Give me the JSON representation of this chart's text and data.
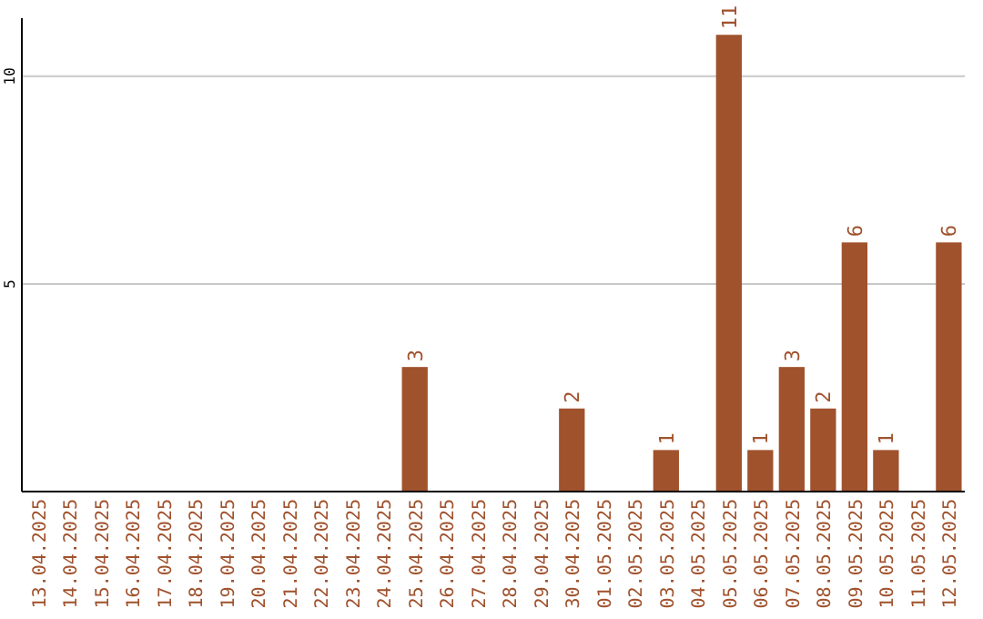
{
  "chart_data": {
    "type": "bar",
    "categories": [
      "13.04.2025",
      "14.04.2025",
      "15.04.2025",
      "16.04.2025",
      "17.04.2025",
      "18.04.2025",
      "19.04.2025",
      "20.04.2025",
      "21.04.2025",
      "22.04.2025",
      "23.04.2025",
      "24.04.2025",
      "25.04.2025",
      "26.04.2025",
      "27.04.2025",
      "28.04.2025",
      "29.04.2025",
      "30.04.2025",
      "01.05.2025",
      "02.05.2025",
      "03.05.2025",
      "04.05.2025",
      "05.05.2025",
      "06.05.2025",
      "07.05.2025",
      "08.05.2025",
      "09.05.2025",
      "10.05.2025",
      "11.05.2025",
      "12.05.2025"
    ],
    "values": [
      0,
      0,
      0,
      0,
      0,
      0,
      0,
      0,
      0,
      0,
      0,
      0,
      3,
      0,
      0,
      0,
      0,
      2,
      0,
      0,
      1,
      0,
      11,
      1,
      3,
      2,
      6,
      1,
      0,
      6
    ],
    "value_labels": [
      null,
      null,
      null,
      null,
      null,
      null,
      null,
      null,
      null,
      null,
      null,
      null,
      "3",
      null,
      null,
      null,
      null,
      "2",
      null,
      null,
      "1",
      null,
      "11",
      "1",
      "3",
      "2",
      "6",
      "1",
      null,
      "6"
    ],
    "color": "#a0522d",
    "ylim": [
      0,
      11.4
    ],
    "yticks": [
      5,
      10
    ],
    "grid": "y"
  }
}
